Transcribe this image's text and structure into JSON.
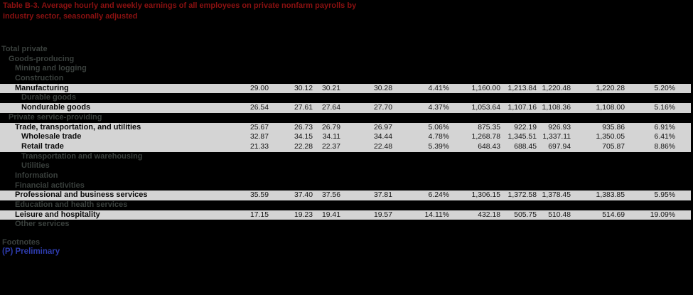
{
  "title": {
    "text": "Table B-3. Average hourly and weekly earnings of all employees on private nonfarm payrolls by industry sector, seasonally adjusted"
  },
  "table": {
    "rows": [
      {
        "label": "Total private",
        "indent": 0,
        "shaded": false,
        "values": []
      },
      {
        "label": "Goods-producing",
        "indent": 1,
        "shaded": false,
        "values": []
      },
      {
        "label": "Mining and logging",
        "indent": 2,
        "shaded": false,
        "values": []
      },
      {
        "label": "Construction",
        "indent": 2,
        "shaded": false,
        "values": []
      },
      {
        "label": "Manufacturing",
        "indent": 2,
        "shaded": true,
        "values": [
          "29.00",
          "30.12",
          "30.21",
          "30.28",
          "4.41%",
          "1,160.00",
          "1,213.84",
          "1,220.48",
          "1,220.28",
          "5.20%"
        ]
      },
      {
        "label": "Durable goods",
        "indent": 3,
        "shaded": false,
        "values": []
      },
      {
        "label": "Nondurable goods",
        "indent": 3,
        "shaded": true,
        "values": [
          "26.54",
          "27.61",
          "27.64",
          "27.70",
          "4.37%",
          "1,053.64",
          "1,107.16",
          "1,108.36",
          "1,108.00",
          "5.16%"
        ]
      },
      {
        "label": "Private service-providing",
        "indent": 1,
        "shaded": false,
        "values": []
      },
      {
        "label": "Trade, transportation, and utilities",
        "indent": 2,
        "shaded": true,
        "values": [
          "25.67",
          "26.73",
          "26.79",
          "26.97",
          "5.06%",
          "875.35",
          "922.19",
          "926.93",
          "935.86",
          "6.91%"
        ]
      },
      {
        "label": "Wholesale trade",
        "indent": 3,
        "shaded": true,
        "values": [
          "32.87",
          "34.15",
          "34.11",
          "34.44",
          "4.78%",
          "1,268.78",
          "1,345.51",
          "1,337.11",
          "1,350.05",
          "6.41%"
        ]
      },
      {
        "label": "Retail trade",
        "indent": 3,
        "shaded": true,
        "values": [
          "21.33",
          "22.28",
          "22.37",
          "22.48",
          "5.39%",
          "648.43",
          "688.45",
          "697.94",
          "705.87",
          "8.86%"
        ]
      },
      {
        "label": "Transportation and warehousing",
        "indent": 3,
        "shaded": false,
        "values": []
      },
      {
        "label": "Utilities",
        "indent": 3,
        "shaded": false,
        "values": []
      },
      {
        "label": "Information",
        "indent": 2,
        "shaded": false,
        "values": []
      },
      {
        "label": "Financial activities",
        "indent": 2,
        "shaded": false,
        "values": []
      },
      {
        "label": "Professional and business services",
        "indent": 2,
        "shaded": true,
        "values": [
          "35.59",
          "37.40",
          "37.56",
          "37.81",
          "6.24%",
          "1,306.15",
          "1,372.58",
          "1,378.45",
          "1,383.85",
          "5.95%"
        ]
      },
      {
        "label": "Education and health services",
        "indent": 2,
        "shaded": false,
        "values": []
      },
      {
        "label": "Leisure and hospitality",
        "indent": 2,
        "shaded": true,
        "values": [
          "17.15",
          "19.23",
          "19.41",
          "19.57",
          "14.11%",
          "432.18",
          "505.75",
          "510.48",
          "514.69",
          "19.09%"
        ]
      },
      {
        "label": "Other services",
        "indent": 2,
        "shaded": false,
        "values": []
      }
    ]
  },
  "footnotes": {
    "heading": "Footnotes",
    "preliminary": "(P) Preliminary"
  },
  "colors": {
    "background": "#000000",
    "title_red": "#8b1111",
    "row_shade": "#d4d4d4",
    "label_gray": "#3a403d",
    "link_blue": "#2e3cae",
    "data_text": "#141414"
  }
}
